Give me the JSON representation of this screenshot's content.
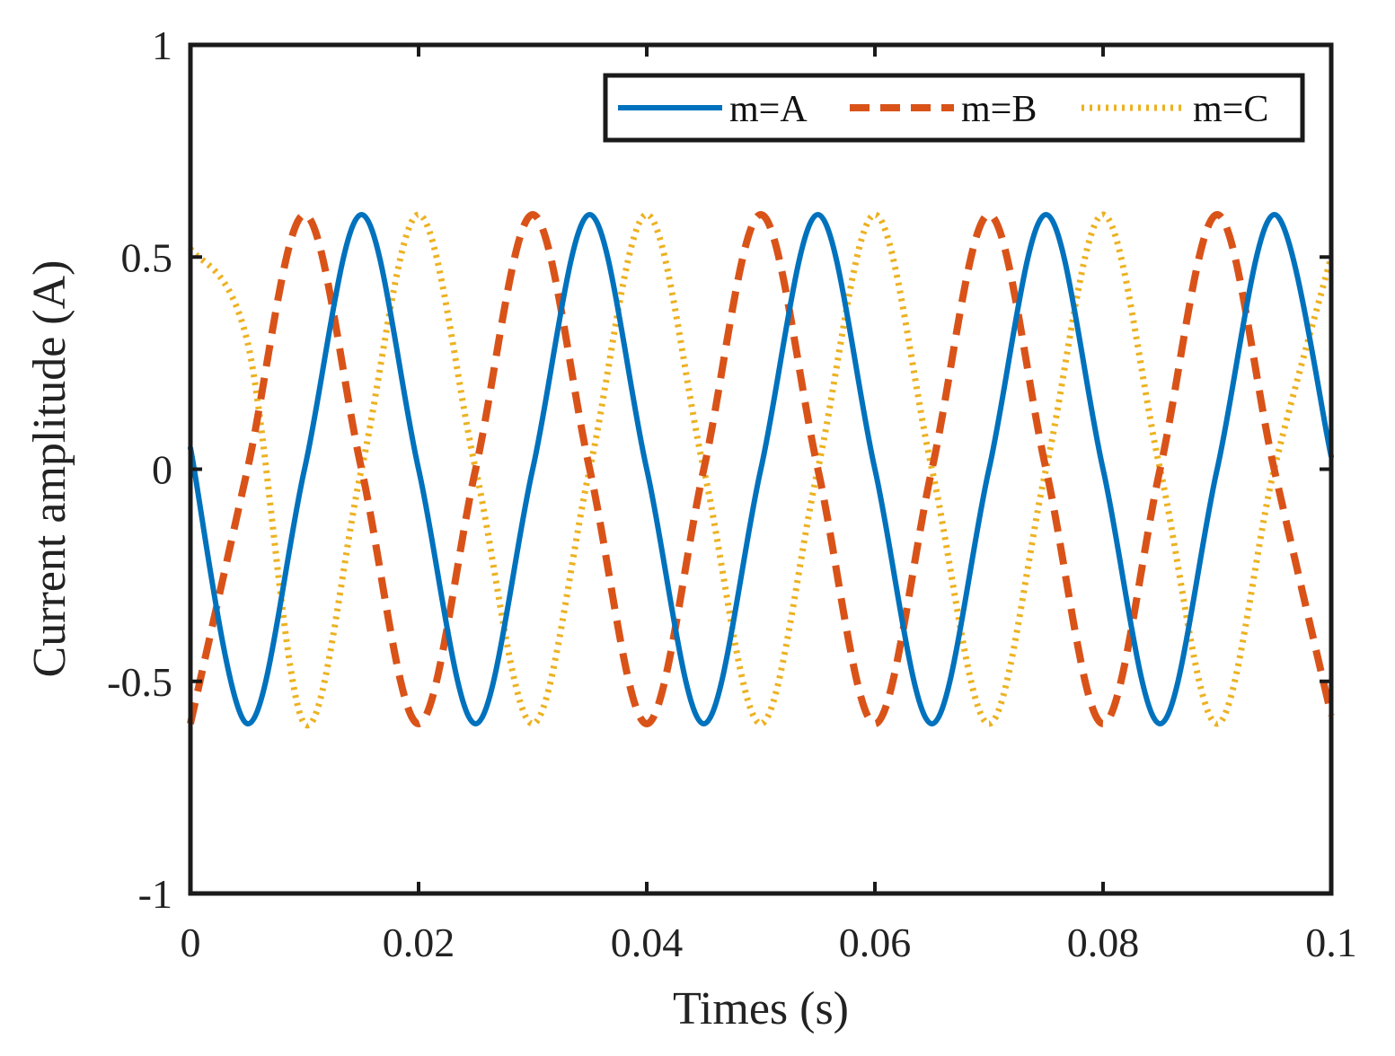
{
  "chart_data": {
    "type": "line",
    "title": "",
    "xlabel": "Times (s)",
    "ylabel": "Current amplitude (A)",
    "xlim": [
      0,
      0.1
    ],
    "ylim": [
      -1,
      1
    ],
    "xticks": [
      0,
      0.02,
      0.04,
      0.06,
      0.08,
      0.1
    ],
    "xtick_labels": [
      "0",
      "0.02",
      "0.04",
      "0.06",
      "0.08",
      "0.1"
    ],
    "yticks": [
      -1,
      -0.5,
      0,
      0.5,
      1
    ],
    "ytick_labels": [
      "-1",
      "-0.5",
      "0",
      "0.5",
      "1"
    ],
    "grid": false,
    "legend": "top-right",
    "series": [
      {
        "name": "m=A",
        "color": "#0072BD",
        "style": "solid",
        "x": [
          0,
          0.005,
          0.01,
          0.015,
          0.02,
          0.025,
          0.03,
          0.035,
          0.04,
          0.045,
          0.05,
          0.055,
          0.06,
          0.065,
          0.07,
          0.075,
          0.08,
          0.085,
          0.09,
          0.095,
          0.1
        ],
        "values": [
          0.05,
          -0.6,
          0,
          0.6,
          0,
          -0.6,
          0,
          0.6,
          0,
          -0.6,
          0,
          0.6,
          0,
          -0.6,
          0,
          0.6,
          0,
          -0.6,
          0,
          0.6,
          0.03
        ]
      },
      {
        "name": "m=B",
        "color": "#D95319",
        "style": "dashed",
        "x": [
          0,
          0.005,
          0.01,
          0.015,
          0.02,
          0.025,
          0.03,
          0.035,
          0.04,
          0.045,
          0.05,
          0.055,
          0.06,
          0.065,
          0.07,
          0.075,
          0.08,
          0.085,
          0.09,
          0.095,
          0.1
        ],
        "values": [
          -0.6,
          0,
          0.6,
          0,
          -0.6,
          0,
          0.6,
          0,
          -0.6,
          0,
          0.6,
          0,
          -0.6,
          0,
          0.6,
          0,
          -0.6,
          0,
          0.6,
          0,
          -0.58
        ]
      },
      {
        "name": "m=C",
        "color": "#EDB120",
        "style": "dotted",
        "x": [
          0,
          0.005,
          0.01,
          0.015,
          0.02,
          0.025,
          0.03,
          0.035,
          0.04,
          0.045,
          0.05,
          0.055,
          0.06,
          0.065,
          0.07,
          0.075,
          0.08,
          0.085,
          0.09,
          0.095,
          0.1
        ],
        "values": [
          0.52,
          0.3,
          -0.6,
          0,
          0.6,
          0,
          -0.6,
          0,
          0.6,
          0,
          -0.6,
          0,
          0.6,
          0,
          -0.6,
          0,
          0.6,
          0,
          -0.6,
          0,
          0.5
        ]
      }
    ]
  }
}
